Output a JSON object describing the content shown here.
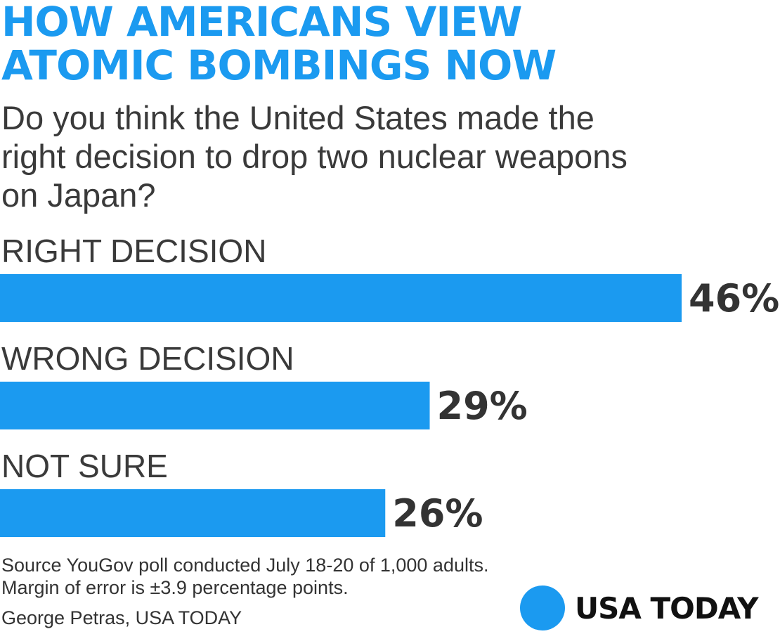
{
  "headline": {
    "line1": "HOW AMERICANS VIEW",
    "line2": "ATOMIC BOMBINGS NOW"
  },
  "question": {
    "line1": "Do you think the United States made the",
    "line2": "right decision to drop two nuclear weapons",
    "line3": "on Japan?"
  },
  "colors": {
    "accent": "#1b9af0",
    "text": "#333333"
  },
  "chart_data": {
    "type": "bar",
    "orientation": "horizontal",
    "categories": [
      "RIGHT DECISION",
      "WRONG DECISION",
      "NOT SURE"
    ],
    "values": [
      46,
      29,
      26
    ],
    "value_labels": [
      "46%",
      "29%",
      "26%"
    ],
    "unit": "%",
    "title": "HOW AMERICANS VIEW ATOMIC BOMBINGS NOW",
    "xlabel": "",
    "ylabel": "",
    "xlim": [
      0,
      46
    ],
    "grid": false,
    "legend": "none"
  },
  "footer": {
    "source_line1": "Source YouGov poll conducted July 18-20 of 1,000 adults.",
    "source_line2": "Margin of error is ±3.9 percentage points.",
    "credit": "George Petras, USA TODAY"
  },
  "logo": {
    "text": "USA TODAY"
  }
}
